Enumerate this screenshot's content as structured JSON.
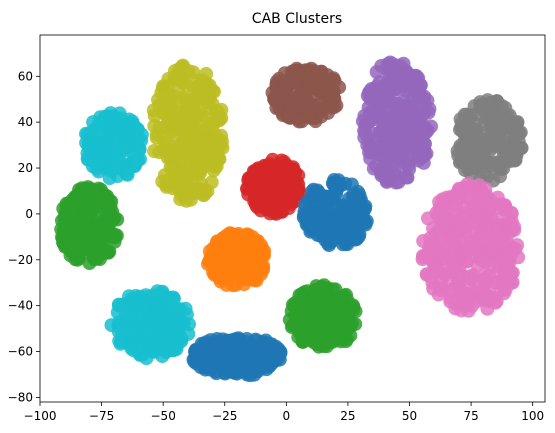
{
  "chart_data": {
    "type": "scatter",
    "title": "CAB Clusters",
    "xlabel": "",
    "ylabel": "",
    "xlim": [
      -100,
      105
    ],
    "ylim": [
      -82,
      78
    ],
    "xticks": [
      -100,
      -75,
      -50,
      -25,
      0,
      25,
      50,
      75,
      100
    ],
    "yticks": [
      -80,
      -60,
      -40,
      -20,
      0,
      20,
      40,
      60
    ],
    "grid": false,
    "legend": "none",
    "series": [
      {
        "color": "#8c564b",
        "center": [
          8,
          52
        ],
        "spread": [
          14,
          12
        ],
        "count": 160
      },
      {
        "color": "#9467bd",
        "center": [
          45,
          40
        ],
        "spread": [
          14,
          28
        ],
        "count": 260
      },
      {
        "color": "#7f7f7f",
        "center": [
          82,
          32
        ],
        "spread": [
          14,
          18
        ],
        "count": 180
      },
      {
        "color": "#bcbd22",
        "center": [
          -40,
          35
        ],
        "spread": [
          15,
          30
        ],
        "count": 260
      },
      {
        "color": "#17becf",
        "center": [
          -70,
          30
        ],
        "spread": [
          12,
          15
        ],
        "count": 150
      },
      {
        "color": "#d62728",
        "center": [
          -5,
          12
        ],
        "spread": [
          11,
          12
        ],
        "count": 140
      },
      {
        "color": "#1f77b4",
        "center": [
          20,
          0
        ],
        "spread": [
          13,
          15
        ],
        "count": 160
      },
      {
        "color": "#2ca02c",
        "center": [
          -80,
          -5
        ],
        "spread": [
          12,
          17
        ],
        "count": 200
      },
      {
        "color": "#ff7f0e",
        "center": [
          -20,
          -20
        ],
        "spread": [
          12,
          12
        ],
        "count": 140
      },
      {
        "color": "#e377c2",
        "center": [
          75,
          -15
        ],
        "spread": [
          20,
          28
        ],
        "count": 320
      },
      {
        "color": "#17becf",
        "center": [
          -55,
          -48
        ],
        "spread": [
          16,
          15
        ],
        "count": 200
      },
      {
        "color": "#2ca02c",
        "center": [
          15,
          -45
        ],
        "spread": [
          14,
          14
        ],
        "count": 180
      },
      {
        "color": "#1f77b4",
        "center": [
          -20,
          -62
        ],
        "spread": [
          18,
          9
        ],
        "count": 200
      }
    ]
  }
}
